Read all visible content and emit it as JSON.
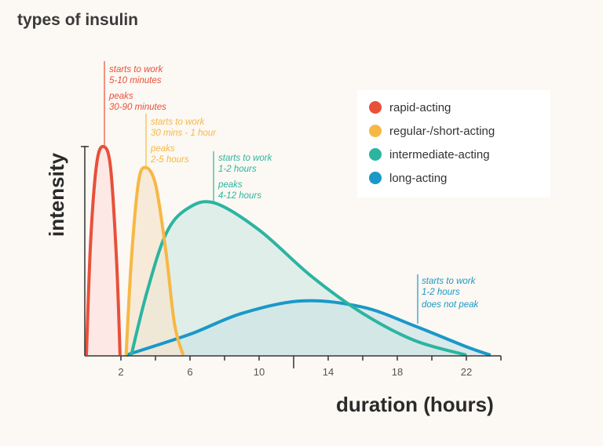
{
  "title": "types of insulin",
  "chart_data": {
    "type": "area",
    "title": "types of insulin",
    "xlabel": "duration (hours)",
    "ylabel": "intensity",
    "xlim": [
      0,
      24
    ],
    "ylim": [
      0,
      1
    ],
    "x_ticks": [
      2,
      6,
      10,
      14,
      18,
      22
    ],
    "grid": false,
    "legend_placement": "top-right",
    "series": [
      {
        "name": "rapid-acting",
        "color": "#e8503a",
        "points": [
          [
            0,
            0
          ],
          [
            0.25,
            0.55
          ],
          [
            0.6,
            0.92
          ],
          [
            1,
            1
          ],
          [
            1.4,
            0.9
          ],
          [
            1.75,
            0.45
          ],
          [
            1.95,
            0
          ]
        ]
      },
      {
        "name": "regular-/short-acting",
        "color": "#f6b844",
        "points": [
          [
            2.3,
            0
          ],
          [
            2.6,
            0.45
          ],
          [
            3,
            0.82
          ],
          [
            3.4,
            0.9
          ],
          [
            4,
            0.82
          ],
          [
            4.6,
            0.5
          ],
          [
            5.1,
            0.15
          ],
          [
            5.6,
            0
          ]
        ]
      },
      {
        "name": "intermediate-acting",
        "color": "#2bb5a0",
        "points": [
          [
            2.6,
            0
          ],
          [
            3.5,
            0.3
          ],
          [
            4.6,
            0.58
          ],
          [
            5.8,
            0.7
          ],
          [
            7.4,
            0.73
          ],
          [
            10,
            0.6
          ],
          [
            13,
            0.38
          ],
          [
            16,
            0.2
          ],
          [
            19,
            0.07
          ],
          [
            22,
            0
          ]
        ]
      },
      {
        "name": "long-acting",
        "color": "#1a98c8",
        "points": [
          [
            2.3,
            0
          ],
          [
            6,
            0.1
          ],
          [
            9,
            0.2
          ],
          [
            12.5,
            0.26
          ],
          [
            16,
            0.23
          ],
          [
            19,
            0.14
          ],
          [
            22,
            0.04
          ],
          [
            23.4,
            0
          ]
        ]
      }
    ],
    "annotations": [
      {
        "series": "rapid-acting",
        "lines": [
          "starts to work",
          "5-10 minutes"
        ],
        "lines2": [
          "peaks",
          "30-90 minutes"
        ]
      },
      {
        "series": "regular-/short-acting",
        "lines": [
          "starts to work",
          "30 mins - 1 hour"
        ],
        "lines2": [
          "peaks",
          "2-5 hours"
        ]
      },
      {
        "series": "intermediate-acting",
        "lines": [
          "starts to work",
          "1-2 hours"
        ],
        "lines2": [
          "peaks",
          "4-12 hours"
        ]
      },
      {
        "series": "long-acting",
        "lines": [
          "starts to work",
          "1-2 hours"
        ],
        "lines2": [
          "does not peak"
        ]
      }
    ]
  }
}
